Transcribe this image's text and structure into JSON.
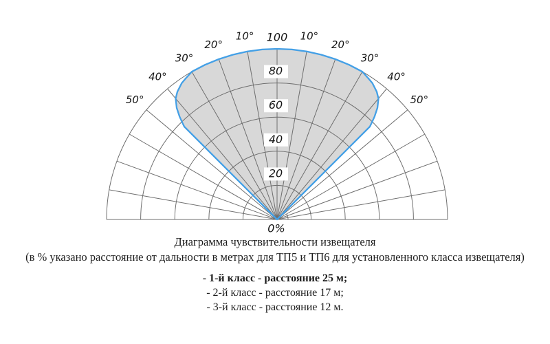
{
  "chart_data": {
    "type": "polar-lobe",
    "title": "Диаграмма чувствительности извещателя",
    "subtitle": "(в % указано расстояние от дальности в метрах для ТП5 и ТП6 для установленного класса извещателя)",
    "angle_axis": {
      "unit": "deg",
      "grid_step_deg": 10,
      "grid_max_deg": 90,
      "labeled_ticks": [
        "10°",
        "20°",
        "30°",
        "40°",
        "50°"
      ],
      "labeled_tick_values": [
        10,
        20,
        30,
        40,
        50
      ]
    },
    "radius_axis": {
      "unit": "%",
      "ticks_pct": [
        20,
        40,
        60,
        80,
        100
      ],
      "boxed_labels": [
        "80",
        "60",
        "40",
        "20"
      ],
      "apex_label": "100",
      "origin_label": "0%"
    },
    "lobe_profile_symmetric_deg_pct": [
      [
        0,
        100
      ],
      [
        5,
        100
      ],
      [
        10,
        100
      ],
      [
        15,
        100
      ],
      [
        20,
        100
      ],
      [
        25,
        100
      ],
      [
        30,
        100
      ],
      [
        33,
        98.5
      ],
      [
        35,
        97.5
      ],
      [
        38,
        95
      ],
      [
        40,
        92.5
      ],
      [
        42,
        88
      ],
      [
        43.5,
        83
      ],
      [
        44.5,
        79
      ],
      [
        45,
        77
      ],
      [
        45,
        0
      ]
    ],
    "legend_position": "below",
    "grid": true
  },
  "colors": {
    "lobe_fill": "#d8d8d8",
    "lobe_stroke": "#44a0e6",
    "grid_gray": "#6e6e6e",
    "label_box": "#ffffff",
    "text": "#151515"
  },
  "legend": {
    "items": [
      {
        "text": "- 1-й класс - расстояние 25 м;",
        "bold": true
      },
      {
        "text": "- 2-й класс - расстояние 17 м;",
        "bold": false
      },
      {
        "text": "- 3-й класс - расстояние 12 м.",
        "bold": false
      }
    ]
  }
}
